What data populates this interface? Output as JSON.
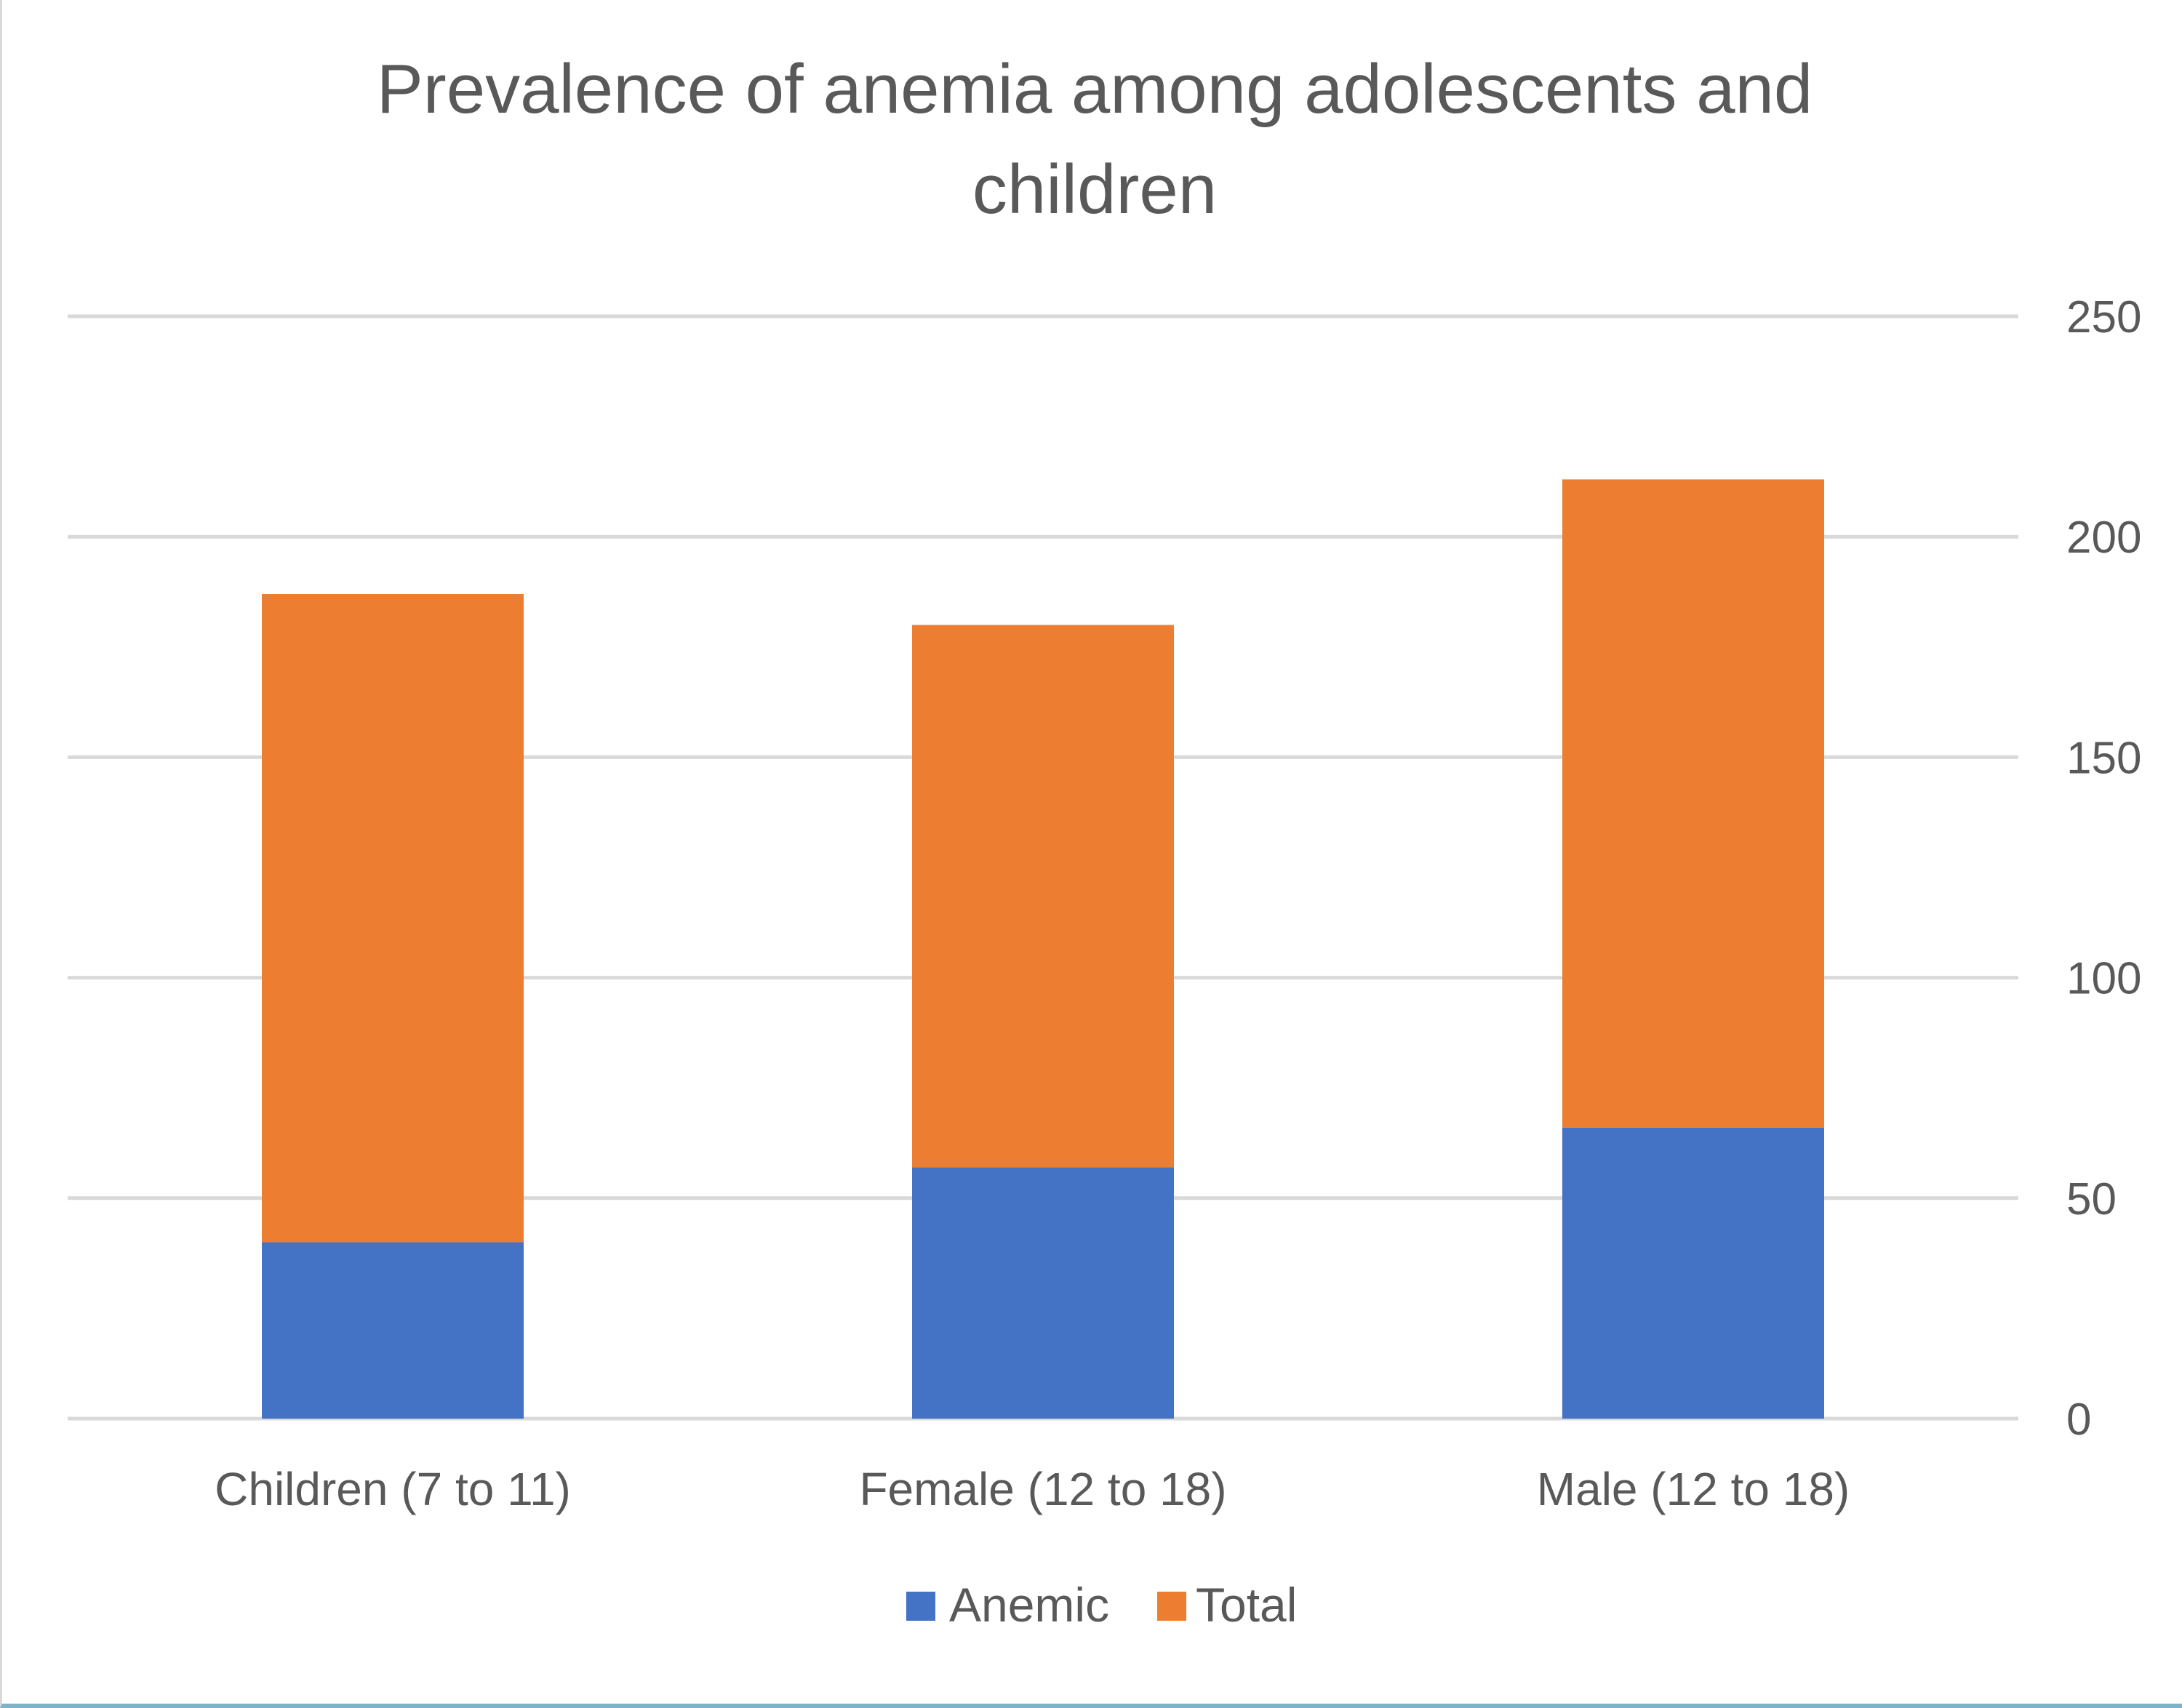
{
  "chart_data": {
    "type": "bar",
    "stacked": true,
    "title_lines": [
      "Prevalence of anemia among adolescents and",
      "children"
    ],
    "categories": [
      "Children (7 to 11)",
      "Female (12 to 18)",
      "Male (12 to 18)"
    ],
    "series": [
      {
        "name": "Anemic",
        "values": [
          40,
          57,
          66
        ],
        "color": "#4472C4"
      },
      {
        "name": "Total",
        "values": [
          147,
          123,
          147
        ],
        "color": "#ED7D31"
      }
    ],
    "xlabel": "",
    "ylabel": "",
    "ylim": [
      0,
      250
    ],
    "yticks": [
      0,
      50,
      100,
      150,
      200,
      250
    ],
    "y_axis_side": "right",
    "grid": true,
    "legend_position": "bottom"
  }
}
